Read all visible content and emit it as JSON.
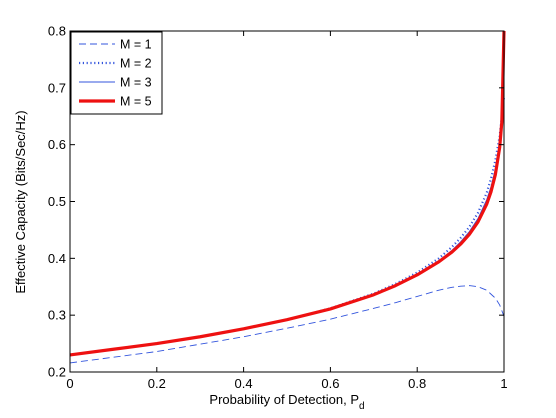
{
  "chart_data": {
    "type": "line",
    "title": "",
    "xlabel": "Probability of Detection, P",
    "xlabel_subscript": "d",
    "ylabel": "Effective Capacity (Bits/Sec/Hz)",
    "xlim": [
      0,
      1
    ],
    "ylim": [
      0.2,
      0.8
    ],
    "xticks": [
      0,
      0.2,
      0.4,
      0.6,
      0.8,
      1
    ],
    "xtick_labels": [
      "0",
      "0.2",
      "0.4",
      "0.6",
      "0.8",
      "1"
    ],
    "yticks": [
      0.2,
      0.3,
      0.4,
      0.5,
      0.6,
      0.7,
      0.8
    ],
    "ytick_labels": [
      "0.2",
      "0.3",
      "0.4",
      "0.5",
      "0.6",
      "0.7",
      "0.8"
    ],
    "grid": false,
    "legend_position": "top-left",
    "series": [
      {
        "name": "M = 1",
        "color": "#3355dd",
        "style": "dashed",
        "x": [
          0,
          0.1,
          0.2,
          0.3,
          0.4,
          0.5,
          0.6,
          0.7,
          0.75,
          0.8,
          0.85,
          0.88,
          0.9,
          0.92,
          0.94,
          0.96,
          0.98,
          0.99,
          1.0
        ],
        "y": [
          0.216,
          0.226,
          0.236,
          0.249,
          0.262,
          0.277,
          0.293,
          0.312,
          0.322,
          0.333,
          0.344,
          0.349,
          0.351,
          0.352,
          0.35,
          0.344,
          0.33,
          0.318,
          0.298
        ]
      },
      {
        "name": "M = 2",
        "color": "#3355dd",
        "style": "dotted",
        "x": [
          0,
          0.1,
          0.2,
          0.3,
          0.4,
          0.5,
          0.6,
          0.7,
          0.75,
          0.8,
          0.85,
          0.88,
          0.9,
          0.92,
          0.94,
          0.96,
          0.97,
          0.98,
          0.99,
          0.995,
          1.0
        ],
        "y": [
          0.23,
          0.24,
          0.25,
          0.262,
          0.276,
          0.292,
          0.312,
          0.338,
          0.355,
          0.375,
          0.4,
          0.42,
          0.436,
          0.455,
          0.48,
          0.515,
          0.54,
          0.572,
          0.615,
          0.65,
          0.685
        ]
      },
      {
        "name": "M = 3",
        "color": "#3355dd",
        "style": "solid",
        "x": [
          0,
          0.1,
          0.2,
          0.3,
          0.4,
          0.5,
          0.6,
          0.7,
          0.75,
          0.8,
          0.85,
          0.88,
          0.9,
          0.92,
          0.94,
          0.96,
          0.97,
          0.98,
          0.99,
          0.995,
          1.0
        ],
        "y": [
          0.23,
          0.24,
          0.25,
          0.262,
          0.276,
          0.292,
          0.312,
          0.337,
          0.353,
          0.372,
          0.396,
          0.414,
          0.429,
          0.447,
          0.47,
          0.503,
          0.526,
          0.557,
          0.603,
          0.645,
          0.72
        ]
      },
      {
        "name": "M = 5",
        "color": "#ee1111",
        "style": "solid-thick",
        "x": [
          0,
          0.1,
          0.2,
          0.3,
          0.4,
          0.5,
          0.6,
          0.7,
          0.75,
          0.8,
          0.85,
          0.88,
          0.9,
          0.92,
          0.94,
          0.96,
          0.97,
          0.98,
          0.99,
          0.995,
          1.0
        ],
        "y": [
          0.23,
          0.24,
          0.25,
          0.262,
          0.276,
          0.292,
          0.311,
          0.336,
          0.352,
          0.371,
          0.394,
          0.411,
          0.425,
          0.442,
          0.464,
          0.495,
          0.517,
          0.547,
          0.595,
          0.64,
          0.8
        ]
      }
    ]
  }
}
